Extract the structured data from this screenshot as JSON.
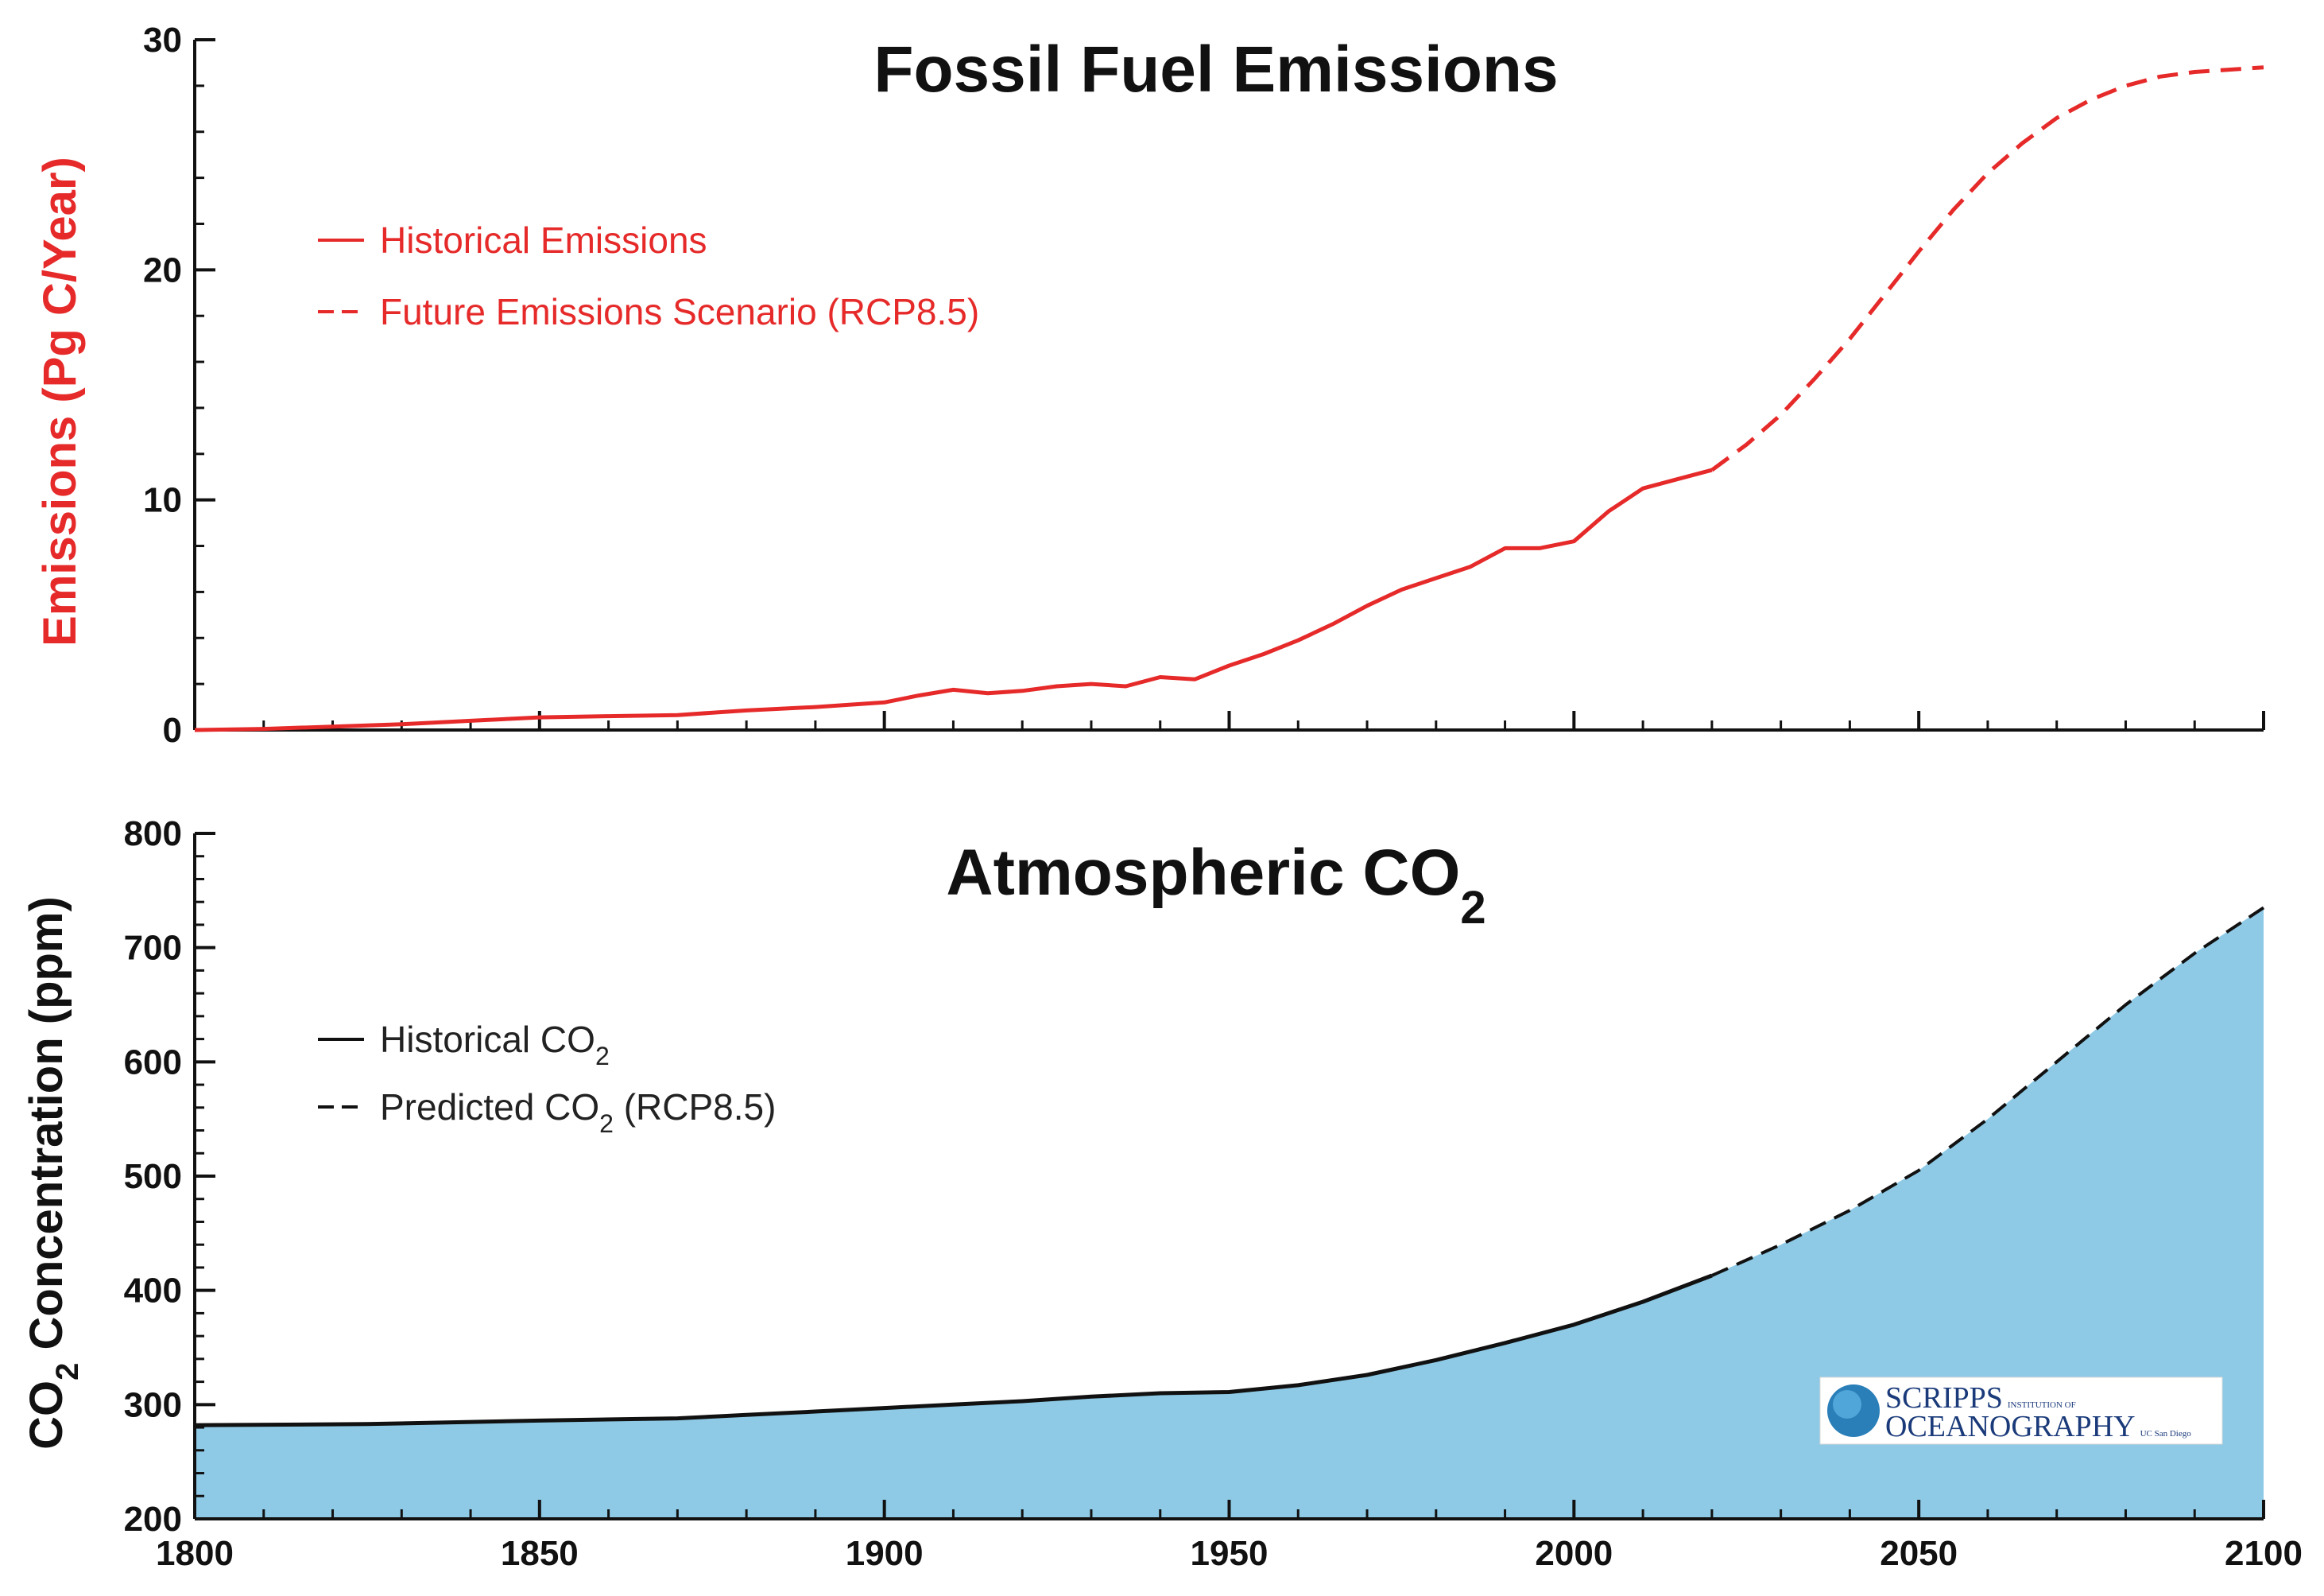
{
  "colors": {
    "emissions": "#e62a2a",
    "co2_line": "#111111",
    "co2_fill": "#8ecae6",
    "axis": "#111111"
  },
  "chart_data": [
    {
      "type": "line",
      "title": "Fossil Fuel Emissions",
      "xlabel": "",
      "ylabel": "Emissions (Pg C/Year)",
      "xlim": [
        1800,
        2100
      ],
      "ylim": [
        0,
        30
      ],
      "xticks": [
        1800,
        1850,
        1900,
        1950,
        2000,
        2050,
        2100
      ],
      "yticks": [
        0,
        10,
        20,
        30
      ],
      "legend_position": "upper-left",
      "series": [
        {
          "name": "Historical Emissions",
          "style": "solid",
          "color": "#e62a2a",
          "x": [
            1800,
            1810,
            1820,
            1830,
            1840,
            1850,
            1860,
            1870,
            1880,
            1890,
            1900,
            1905,
            1910,
            1915,
            1920,
            1925,
            1930,
            1935,
            1940,
            1945,
            1950,
            1955,
            1960,
            1965,
            1970,
            1975,
            1980,
            1985,
            1990,
            1995,
            2000,
            2005,
            2010,
            2015,
            2020
          ],
          "values": [
            0.0,
            0.05,
            0.15,
            0.25,
            0.4,
            0.55,
            0.6,
            0.65,
            0.85,
            1.0,
            1.2,
            1.5,
            1.75,
            1.6,
            1.7,
            1.9,
            2.0,
            1.9,
            2.3,
            2.2,
            2.8,
            3.3,
            3.9,
            4.6,
            5.4,
            6.1,
            6.6,
            7.1,
            7.9,
            7.9,
            8.2,
            9.5,
            10.5,
            10.9,
            11.3
          ]
        },
        {
          "name": "Future Emissions Scenario (RCP8.5)",
          "style": "dashed",
          "color": "#e62a2a",
          "x": [
            2020,
            2025,
            2030,
            2035,
            2040,
            2045,
            2050,
            2055,
            2060,
            2065,
            2070,
            2075,
            2080,
            2085,
            2090,
            2095,
            2100
          ],
          "values": [
            11.3,
            12.4,
            13.7,
            15.3,
            17.0,
            18.9,
            20.8,
            22.6,
            24.2,
            25.5,
            26.6,
            27.4,
            28.0,
            28.4,
            28.6,
            28.7,
            28.8
          ]
        }
      ]
    },
    {
      "type": "area",
      "title_main": "Atmospheric CO",
      "title_sub": "2",
      "xlabel": "",
      "ylabel_prefix": "CO",
      "ylabel_sub": "2",
      "ylabel_suffix": " Concentration (ppm)",
      "xlim": [
        1800,
        2100
      ],
      "ylim": [
        200,
        800
      ],
      "xticks": [
        1800,
        1850,
        1900,
        1950,
        2000,
        2050,
        2100
      ],
      "yticks": [
        200,
        300,
        400,
        500,
        600,
        700,
        800
      ],
      "legend_position": "upper-left",
      "fill_color": "#8ecae6",
      "series": [
        {
          "name_main": "Historical CO",
          "name_sub": "2",
          "name_suffix": "",
          "style": "solid",
          "color": "#111111",
          "x": [
            1800,
            1825,
            1850,
            1870,
            1880,
            1890,
            1900,
            1910,
            1920,
            1930,
            1940,
            1950,
            1960,
            1970,
            1980,
            1990,
            2000,
            2010,
            2020
          ],
          "values": [
            282,
            283,
            286,
            288,
            291,
            294,
            297,
            300,
            303,
            307,
            310,
            311,
            317,
            326,
            339,
            354,
            370,
            390,
            413
          ]
        },
        {
          "name_main": "Predicted CO",
          "name_sub": "2",
          "name_suffix": " (RCP8.5)",
          "style": "dashed",
          "color": "#111111",
          "x": [
            2020,
            2030,
            2040,
            2050,
            2060,
            2070,
            2080,
            2090,
            2100
          ],
          "values": [
            413,
            440,
            470,
            505,
            550,
            600,
            650,
            695,
            735
          ]
        }
      ]
    }
  ],
  "logo": {
    "line1": "SCRIPPS",
    "line1_small": "INSTITUTION OF",
    "line2": "OCEANOGRAPHY",
    "line2_small": "UC San Diego"
  }
}
